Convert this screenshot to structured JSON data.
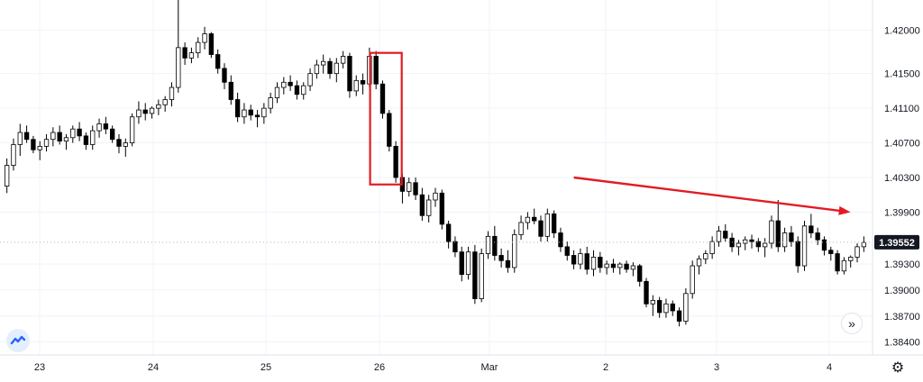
{
  "chart_data": {
    "type": "candlestick",
    "y_ticks": [
      "1.42000",
      "1.41500",
      "1.41100",
      "1.40700",
      "1.40300",
      "1.39900",
      "1.39300",
      "1.39000",
      "1.38700",
      "1.38400"
    ],
    "x_ticks": [
      "23",
      "24",
      "25",
      "26",
      "Mar",
      "2",
      "3",
      "4"
    ],
    "ylim": [
      1.3825,
      1.4235
    ],
    "last_price": "1.39552",
    "last_price_value": 1.39552,
    "candles": [
      [
        1.402,
        1.4052,
        1.4012,
        1.4044
      ],
      [
        1.4044,
        1.4075,
        1.4038,
        1.4068
      ],
      [
        1.4068,
        1.4092,
        1.4055,
        1.4082
      ],
      [
        1.4082,
        1.409,
        1.407,
        1.4074
      ],
      [
        1.4074,
        1.4078,
        1.4058,
        1.4062
      ],
      [
        1.4062,
        1.4072,
        1.405,
        1.4066
      ],
      [
        1.4066,
        1.408,
        1.406,
        1.4074
      ],
      [
        1.4074,
        1.4088,
        1.4066,
        1.4082
      ],
      [
        1.4082,
        1.409,
        1.4068,
        1.4072
      ],
      [
        1.4072,
        1.408,
        1.4062,
        1.4076
      ],
      [
        1.4076,
        1.409,
        1.407,
        1.4086
      ],
      [
        1.4086,
        1.4094,
        1.4072,
        1.4078
      ],
      [
        1.4078,
        1.4082,
        1.4062,
        1.4068
      ],
      [
        1.4068,
        1.409,
        1.4062,
        1.4084
      ],
      [
        1.4084,
        1.4098,
        1.4076,
        1.4092
      ],
      [
        1.4092,
        1.41,
        1.408,
        1.4086
      ],
      [
        1.4086,
        1.409,
        1.407,
        1.4074
      ],
      [
        1.4074,
        1.408,
        1.4058,
        1.4066
      ],
      [
        1.4066,
        1.4075,
        1.4054,
        1.407
      ],
      [
        1.407,
        1.4104,
        1.4066,
        1.41
      ],
      [
        1.41,
        1.4118,
        1.4092,
        1.4108
      ],
      [
        1.4108,
        1.4116,
        1.4096,
        1.4104
      ],
      [
        1.4104,
        1.4112,
        1.4098,
        1.411
      ],
      [
        1.411,
        1.412,
        1.4102,
        1.4114
      ],
      [
        1.4114,
        1.4124,
        1.4106,
        1.412
      ],
      [
        1.412,
        1.414,
        1.4112,
        1.4134
      ],
      [
        1.4134,
        1.4235,
        1.4128,
        1.418
      ],
      [
        1.418,
        1.4186,
        1.416,
        1.4168
      ],
      [
        1.4168,
        1.418,
        1.4162,
        1.4174
      ],
      [
        1.4174,
        1.4192,
        1.4168,
        1.4186
      ],
      [
        1.4186,
        1.4204,
        1.4178,
        1.4196
      ],
      [
        1.4196,
        1.4198,
        1.4168,
        1.4172
      ],
      [
        1.4172,
        1.4178,
        1.415,
        1.4156
      ],
      [
        1.4156,
        1.4162,
        1.4132,
        1.414
      ],
      [
        1.414,
        1.4148,
        1.4114,
        1.412
      ],
      [
        1.412,
        1.4128,
        1.4094,
        1.41
      ],
      [
        1.41,
        1.4116,
        1.4092,
        1.4108
      ],
      [
        1.4108,
        1.4114,
        1.4096,
        1.4102
      ],
      [
        1.4102,
        1.4108,
        1.4088,
        1.41
      ],
      [
        1.41,
        1.4116,
        1.4092,
        1.411
      ],
      [
        1.411,
        1.4128,
        1.4104,
        1.4122
      ],
      [
        1.4122,
        1.414,
        1.4116,
        1.4134
      ],
      [
        1.4134,
        1.4146,
        1.4126,
        1.414
      ],
      [
        1.414,
        1.4148,
        1.413,
        1.4136
      ],
      [
        1.4136,
        1.4142,
        1.412,
        1.4126
      ],
      [
        1.4126,
        1.414,
        1.412,
        1.4136
      ],
      [
        1.4136,
        1.4156,
        1.413,
        1.415
      ],
      [
        1.415,
        1.4166,
        1.4144,
        1.416
      ],
      [
        1.416,
        1.4172,
        1.415,
        1.4164
      ],
      [
        1.4164,
        1.4168,
        1.4144,
        1.415
      ],
      [
        1.415,
        1.4168,
        1.414,
        1.4162
      ],
      [
        1.4162,
        1.4176,
        1.4156,
        1.417
      ],
      [
        1.417,
        1.4174,
        1.4122,
        1.413
      ],
      [
        1.413,
        1.4148,
        1.4124,
        1.4142
      ],
      [
        1.4142,
        1.415,
        1.4126,
        1.4138
      ],
      [
        1.4138,
        1.418,
        1.4134,
        1.417
      ],
      [
        1.417,
        1.4176,
        1.4132,
        1.4138
      ],
      [
        1.4138,
        1.4142,
        1.4098,
        1.4104
      ],
      [
        1.4104,
        1.4108,
        1.406,
        1.4066
      ],
      [
        1.4066,
        1.4072,
        1.4024,
        1.403
      ],
      [
        1.403,
        1.4034,
        1.4,
        1.4014
      ],
      [
        1.4014,
        1.403,
        1.4008,
        1.4024
      ],
      [
        1.4024,
        1.403,
        1.4004,
        1.401
      ],
      [
        1.401,
        1.4018,
        1.398,
        1.3986
      ],
      [
        1.3986,
        1.401,
        1.3978,
        1.4004
      ],
      [
        1.4004,
        1.4018,
        1.3996,
        1.4012
      ],
      [
        1.4012,
        1.4016,
        1.397,
        1.3976
      ],
      [
        1.3976,
        1.398,
        1.3948,
        1.3956
      ],
      [
        1.3956,
        1.3962,
        1.3938,
        1.3944
      ],
      [
        1.3944,
        1.395,
        1.391,
        1.3918
      ],
      [
        1.3918,
        1.395,
        1.3912,
        1.3944
      ],
      [
        1.3944,
        1.3952,
        1.3884,
        1.389
      ],
      [
        1.389,
        1.3948,
        1.3886,
        1.3942
      ],
      [
        1.3942,
        1.3968,
        1.3936,
        1.3962
      ],
      [
        1.3962,
        1.3974,
        1.3934,
        1.394
      ],
      [
        1.394,
        1.3948,
        1.3926,
        1.3934
      ],
      [
        1.3934,
        1.3946,
        1.392,
        1.3926
      ],
      [
        1.3926,
        1.397,
        1.392,
        1.3964
      ],
      [
        1.3964,
        1.3986,
        1.3958,
        1.3978
      ],
      [
        1.3978,
        1.399,
        1.397,
        1.3984
      ],
      [
        1.3984,
        1.3994,
        1.3976,
        1.398
      ],
      [
        1.398,
        1.3986,
        1.3956,
        1.3962
      ],
      [
        1.3962,
        1.3994,
        1.3956,
        1.3988
      ],
      [
        1.3988,
        1.3992,
        1.396,
        1.3966
      ],
      [
        1.3966,
        1.3972,
        1.3944,
        1.395
      ],
      [
        1.395,
        1.3956,
        1.3934,
        1.394
      ],
      [
        1.394,
        1.3946,
        1.3924,
        1.393
      ],
      [
        1.393,
        1.3948,
        1.3924,
        1.3942
      ],
      [
        1.3942,
        1.395,
        1.3918,
        1.3924
      ],
      [
        1.3924,
        1.3946,
        1.3916,
        1.3938
      ],
      [
        1.3938,
        1.3944,
        1.392,
        1.3926
      ],
      [
        1.3926,
        1.3934,
        1.3918,
        1.393
      ],
      [
        1.393,
        1.3936,
        1.392,
        1.3926
      ],
      [
        1.3926,
        1.3932,
        1.3918,
        1.393
      ],
      [
        1.393,
        1.3934,
        1.392,
        1.3924
      ],
      [
        1.3924,
        1.3932,
        1.3916,
        1.3928
      ],
      [
        1.3928,
        1.393,
        1.3904,
        1.391
      ],
      [
        1.391,
        1.3914,
        1.388,
        1.3884
      ],
      [
        1.3884,
        1.3894,
        1.387,
        1.3888
      ],
      [
        1.3888,
        1.3892,
        1.3868,
        1.3874
      ],
      [
        1.3874,
        1.389,
        1.3868,
        1.3884
      ],
      [
        1.3884,
        1.3888,
        1.387,
        1.3876
      ],
      [
        1.3876,
        1.388,
        1.3858,
        1.3864
      ],
      [
        1.3864,
        1.3902,
        1.386,
        1.3896
      ],
      [
        1.3896,
        1.3934,
        1.389,
        1.3928
      ],
      [
        1.3928,
        1.394,
        1.3918,
        1.3936
      ],
      [
        1.3936,
        1.3946,
        1.393,
        1.3942
      ],
      [
        1.3942,
        1.3962,
        1.3936,
        1.3956
      ],
      [
        1.3956,
        1.3974,
        1.395,
        1.3968
      ],
      [
        1.3968,
        1.3976,
        1.3956,
        1.396
      ],
      [
        1.396,
        1.3966,
        1.3944,
        1.395
      ],
      [
        1.395,
        1.3958,
        1.394,
        1.3954
      ],
      [
        1.3954,
        1.3962,
        1.3946,
        1.3958
      ],
      [
        1.3958,
        1.3964,
        1.3948,
        1.3956
      ],
      [
        1.3956,
        1.396,
        1.3944,
        1.395
      ],
      [
        1.395,
        1.396,
        1.3938,
        1.3954
      ],
      [
        1.3954,
        1.3986,
        1.3948,
        1.398
      ],
      [
        1.398,
        1.4004,
        1.3944,
        1.395
      ],
      [
        1.395,
        1.3972,
        1.3944,
        1.3966
      ],
      [
        1.3966,
        1.3974,
        1.395,
        1.3956
      ],
      [
        1.3956,
        1.3962,
        1.392,
        1.3928
      ],
      [
        1.3928,
        1.398,
        1.3922,
        1.3974
      ],
      [
        1.3974,
        1.3988,
        1.396,
        1.3966
      ],
      [
        1.3966,
        1.3972,
        1.3952,
        1.3958
      ],
      [
        1.3958,
        1.3962,
        1.394,
        1.3946
      ],
      [
        1.3946,
        1.395,
        1.3934,
        1.3942
      ],
      [
        1.3942,
        1.3946,
        1.3918,
        1.3922
      ],
      [
        1.3922,
        1.3938,
        1.3918,
        1.3934
      ],
      [
        1.3934,
        1.394,
        1.3926,
        1.3938
      ],
      [
        1.3938,
        1.3954,
        1.3932,
        1.395
      ],
      [
        1.395,
        1.3962,
        1.3944,
        1.3955
      ]
    ],
    "highlight_box": {
      "from_index": 56,
      "to_index": 59
    },
    "trend_arrow": {
      "from_index": 86,
      "from_price": 1.403,
      "to_index": 128,
      "to_price": 1.399
    }
  },
  "controls": {
    "scroll_label": "»",
    "settings_label": "⚙",
    "logo_icon": "tradingview-logo-icon"
  },
  "colors": {
    "bull": "#ffffff",
    "bear": "#000000",
    "wick": "#000000",
    "grid": "#f0f3fa",
    "annotation": "#e31b23",
    "price_tag": "#131722",
    "axis_text": "#131722",
    "logo_bg": "#e3effd",
    "logo_fg": "#2962ff"
  }
}
